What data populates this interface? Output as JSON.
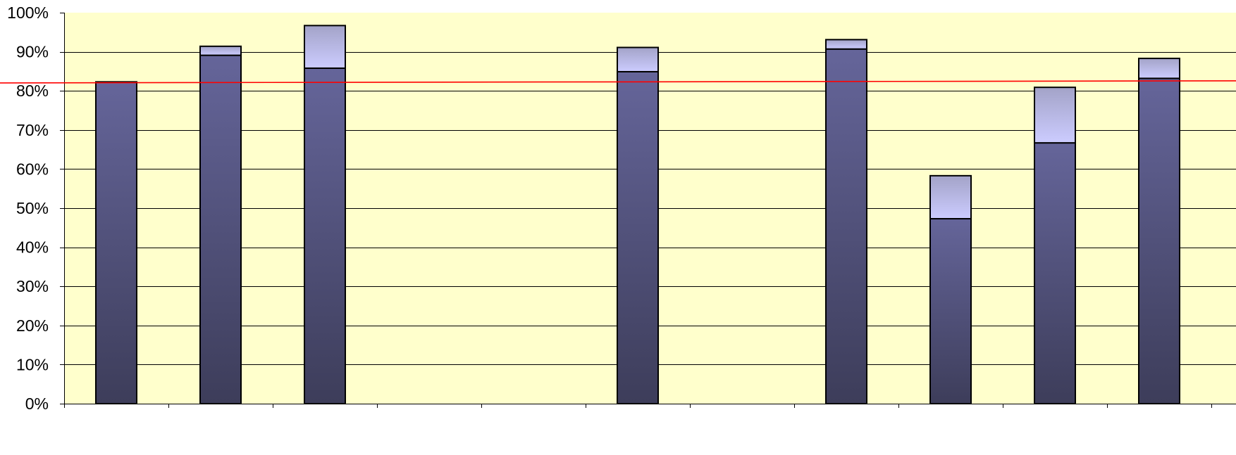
{
  "chart_data": {
    "type": "bar",
    "stacked": true,
    "categories": [
      "",
      "",
      "",
      "",
      "",
      "",
      "",
      "",
      "",
      "",
      ""
    ],
    "series": [
      {
        "values": [
          82.3,
          89.1,
          85.8,
          null,
          null,
          84.9,
          null,
          90.7,
          47.3,
          66.7,
          83.2
        ]
      },
      {
        "values": [
          0,
          2.3,
          10.9,
          null,
          null,
          6.2,
          null,
          2.4,
          11.0,
          14.2,
          5.1
        ]
      }
    ],
    "reference_line": {
      "value": 82.3
    },
    "ylim": [
      0,
      100
    ],
    "y_ticks": [
      "0%",
      "10%",
      "20%",
      "30%",
      "40%",
      "50%",
      "60%",
      "70%",
      "80%",
      "90%",
      "100%"
    ],
    "y_tick_values": [
      0,
      10,
      20,
      30,
      40,
      50,
      60,
      70,
      80,
      90,
      100
    ],
    "title": "",
    "xlabel": "",
    "ylabel": "",
    "grid": true,
    "legend": "none",
    "colors": {
      "plot_background": "#ffffcc",
      "gridline": "#000000",
      "bar_lower_top": "#65659a",
      "bar_lower_bottom": "#3d3d5a",
      "bar_upper_top": "#a3a3c8",
      "bar_upper_bottom": "#ccccff",
      "bar_outline": "#000000",
      "reference_line": "#ff0000"
    }
  }
}
